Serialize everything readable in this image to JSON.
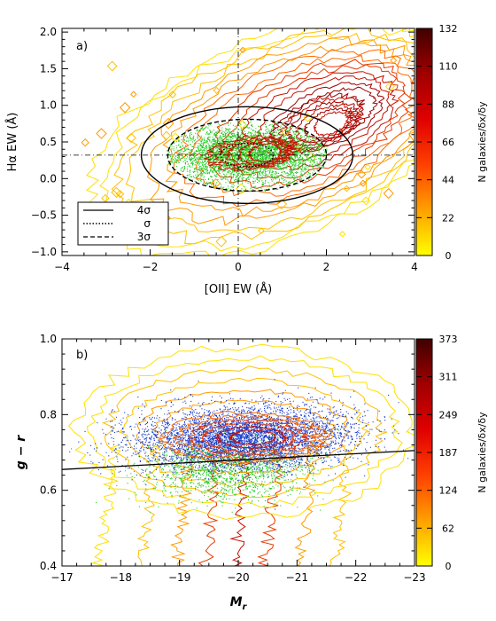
{
  "chart_data": [
    {
      "type": "scatter",
      "panel_label": "a)",
      "xlabel": "[OII] EW (Å)",
      "ylabel": "Hα EW (Å)",
      "xlim": [
        -4,
        4
      ],
      "ylim": [
        -1.05,
        2.05
      ],
      "x_ticks": [
        -4,
        -2,
        0,
        2,
        4
      ],
      "x_tick_labels": [
        "−4",
        "−2",
        "0",
        "2",
        "4"
      ],
      "y_ticks": [
        -1.0,
        -0.5,
        0.0,
        0.5,
        1.0,
        1.5,
        2.0
      ],
      "y_tick_labels": [
        "−1.0",
        "−0.5",
        "0.0",
        "0.5",
        "1.0",
        "1.5",
        "2.0"
      ],
      "colorbar": {
        "label": "N galaxies/δx/δy",
        "ticks": [
          0,
          22,
          44,
          66,
          88,
          110,
          132
        ],
        "tick_labels": [
          "0",
          "22",
          "44",
          "66",
          "88",
          "110",
          "132"
        ],
        "colors": [
          "#ffff00",
          "#ffa000",
          "#ff4000",
          "#e00000",
          "#a00000",
          "#400000"
        ]
      },
      "reference_lines": {
        "x0": 0,
        "y0": 0.32
      },
      "ellipses": [
        {
          "name": "4σ",
          "center": [
            0.2,
            0.32
          ],
          "rx_data": 2.4,
          "ry_data": 0.66,
          "style": "solid"
        },
        {
          "name": "σ",
          "center": [
            0.2,
            0.32
          ],
          "rx_data": 0.6,
          "ry_data": 0.16,
          "style": "dotted"
        },
        {
          "name": "3σ",
          "center": [
            0.2,
            0.32
          ],
          "rx_data": 1.8,
          "ry_data": 0.49,
          "style": "dashed"
        }
      ],
      "points_color": "#22cc22",
      "legend": {
        "placement": "bottom-left",
        "entries": [
          {
            "label": "4σ",
            "style": "solid"
          },
          {
            "label": "σ",
            "style": "dotted"
          },
          {
            "label": "3σ",
            "style": "dashed"
          }
        ]
      }
    },
    {
      "type": "scatter",
      "panel_label": "b)",
      "xlabel": "M",
      "xlabel_sub": "r",
      "ylabel": "g − r",
      "xlim": [
        -17,
        -23
      ],
      "ylim": [
        0.4,
        1.0
      ],
      "x_ticks": [
        -17,
        -18,
        -19,
        -20,
        -21,
        -22,
        -23
      ],
      "x_tick_labels": [
        "−17",
        "−18",
        "−19",
        "−20",
        "−21",
        "−22",
        "−23"
      ],
      "y_ticks": [
        0.4,
        0.6,
        0.8,
        1.0
      ],
      "y_tick_labels": [
        "0.4",
        "0.6",
        "0.8",
        "1.0"
      ],
      "colorbar": {
        "label": "N galaxies/δx/δy",
        "ticks": [
          0,
          62,
          124,
          187,
          249,
          311,
          373
        ],
        "tick_labels": [
          "0",
          "62",
          "124",
          "187",
          "249",
          "311",
          "373"
        ],
        "colors": [
          "#ffff00",
          "#ffa000",
          "#ff4000",
          "#e00000",
          "#a00000",
          "#400000"
        ]
      },
      "divider_line": {
        "x": [
          -17,
          -23
        ],
        "y": [
          0.655,
          0.705
        ]
      },
      "points_colors": {
        "red_sequence": "#1a3acc",
        "other": "#22cc22"
      }
    }
  ]
}
